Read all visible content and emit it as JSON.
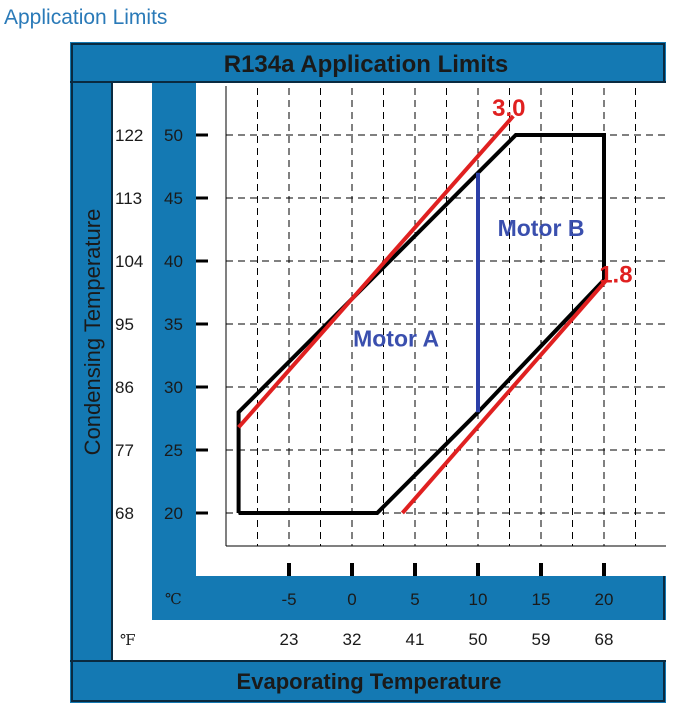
{
  "heading": "Application Limits",
  "chart_data": {
    "type": "line",
    "title": "R134a  Application Limits",
    "xlabel": "Evaporating Temperature",
    "ylabel": "Condensing Temperature",
    "x_unit_c": "℃",
    "x_unit_f": "℉",
    "x_ticks_c": [
      -5,
      0,
      5,
      10,
      15,
      20
    ],
    "x_ticks_f": [
      23,
      32,
      41,
      50,
      59,
      68
    ],
    "y_ticks_c": [
      20,
      25,
      30,
      35,
      40,
      45,
      50
    ],
    "y_ticks_f": [
      68,
      77,
      86,
      95,
      104,
      113,
      122
    ],
    "xlim": [
      -10,
      24
    ],
    "ylim": [
      17,
      54
    ],
    "grid": true,
    "series": [
      {
        "kind": "envelope",
        "color": "#000000",
        "points": [
          [
            -9,
            20
          ],
          [
            2,
            20
          ],
          [
            10,
            28
          ],
          [
            20,
            38.5
          ],
          [
            20,
            50
          ],
          [
            13,
            50
          ],
          [
            -9,
            28
          ],
          [
            -9,
            20
          ]
        ]
      },
      {
        "name": "3.0",
        "color": "#e02020",
        "points": [
          [
            -9,
            26.8
          ],
          [
            12.8,
            51.5
          ]
        ]
      },
      {
        "name": "1.8",
        "color": "#e02020",
        "points": [
          [
            4,
            20
          ],
          [
            20.2,
            38.5
          ]
        ]
      },
      {
        "kind": "divider",
        "color": "#2b3fa8",
        "points": [
          [
            10,
            28
          ],
          [
            10,
            47
          ]
        ]
      }
    ],
    "annotations": [
      {
        "text": "Motor A",
        "x": 3.5,
        "y": 33.2,
        "color": "#3a4fae"
      },
      {
        "text": "Motor B",
        "x": 15,
        "y": 42,
        "color": "#3a4fae"
      },
      {
        "text": "3.0",
        "x": 13.5,
        "y": 51.5,
        "color": "#e02020"
      },
      {
        "text": "1.8",
        "x": 22,
        "y": 38.3,
        "color": "#e02020"
      }
    ]
  }
}
